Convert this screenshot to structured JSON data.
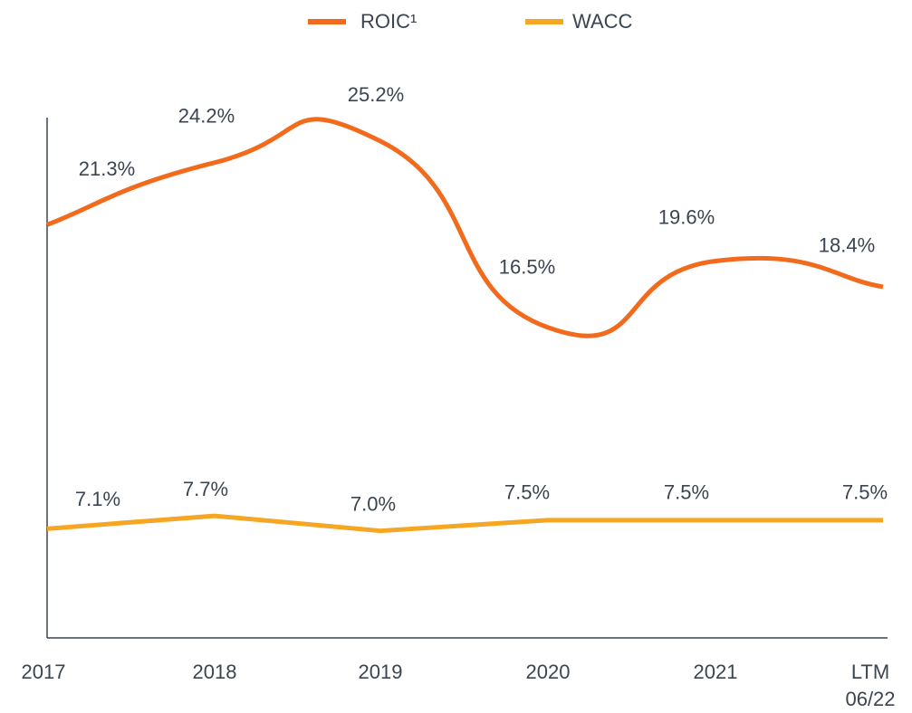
{
  "chart_data": {
    "type": "line",
    "categories": [
      "2017",
      "2018",
      "2019",
      "2020",
      "2021",
      "LTM 06/22"
    ],
    "series": [
      {
        "name": "ROIC¹",
        "color": "#f26b1d",
        "values": [
          21.3,
          24.2,
          25.2,
          16.5,
          19.6,
          18.4
        ],
        "value_labels": [
          "21.3%",
          "24.2%",
          "25.2%",
          "16.5%",
          "19.6%",
          "18.4%"
        ],
        "smooth": true
      },
      {
        "name": "WACC",
        "color": "#f5a623",
        "values": [
          7.1,
          7.7,
          7.0,
          7.5,
          7.5,
          7.5
        ],
        "value_labels": [
          "7.1%",
          "7.7%",
          "7.0%",
          "7.5%",
          "7.5%",
          "7.5%"
        ],
        "smooth": false
      }
    ],
    "ylim": [
      2,
      26.3
    ],
    "legend": "top"
  }
}
